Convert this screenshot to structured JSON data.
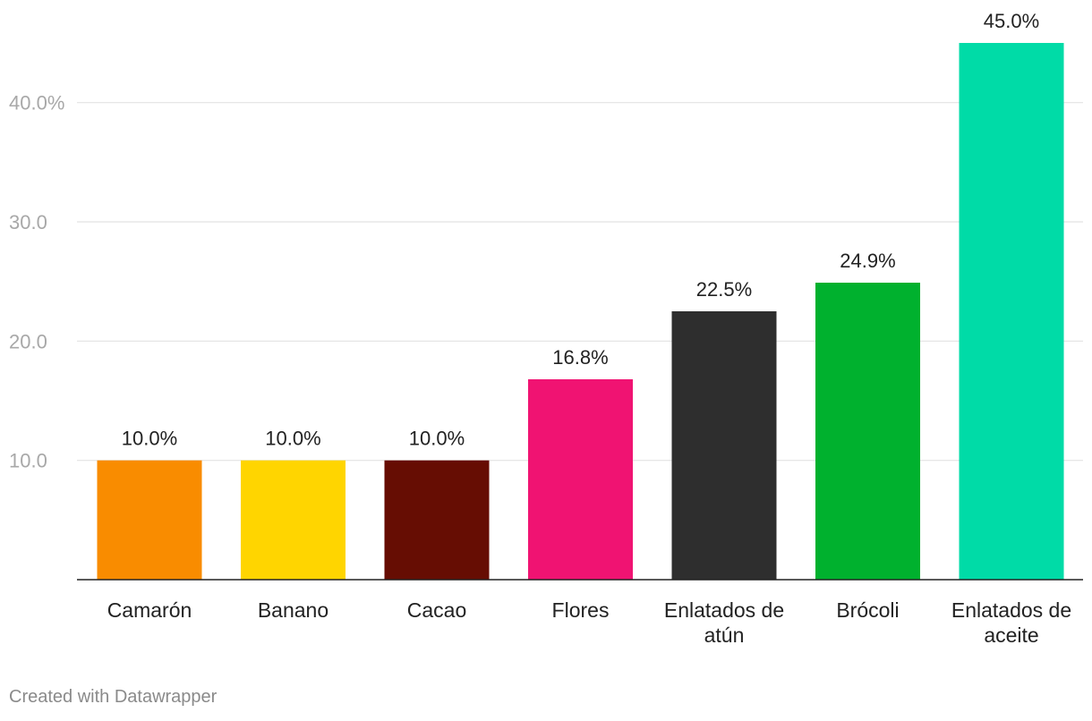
{
  "chart_data": {
    "type": "bar",
    "title": "",
    "xlabel": "",
    "ylabel": "",
    "ylim": [
      0,
      45
    ],
    "grid": true,
    "yticks": [
      {
        "value": 10,
        "label": "10.0"
      },
      {
        "value": 20,
        "label": "20.0"
      },
      {
        "value": 30,
        "label": "30.0"
      },
      {
        "value": 40,
        "label": "40.0%"
      }
    ],
    "bars": [
      {
        "category": [
          "Camarón"
        ],
        "value": 10.0,
        "label": "10.0%",
        "color": "#f98c00"
      },
      {
        "category": [
          "Banano"
        ],
        "value": 10.0,
        "label": "10.0%",
        "color": "#ffd500"
      },
      {
        "category": [
          "Cacao"
        ],
        "value": 10.0,
        "label": "10.0%",
        "color": "#660d03"
      },
      {
        "category": [
          "Flores"
        ],
        "value": 16.8,
        "label": "16.8%",
        "color": "#f01372"
      },
      {
        "category": [
          "Enlatados de",
          "atún"
        ],
        "value": 22.5,
        "label": "22.5%",
        "color": "#2e2e2e"
      },
      {
        "category": [
          "Brócoli"
        ],
        "value": 24.9,
        "label": "24.9%",
        "color": "#00b12e"
      },
      {
        "category": [
          "Enlatados de",
          "aceite"
        ],
        "value": 45.0,
        "label": "45.0%",
        "color": "#00dba7"
      }
    ]
  },
  "footer": {
    "credit": "Created with Datawrapper"
  }
}
